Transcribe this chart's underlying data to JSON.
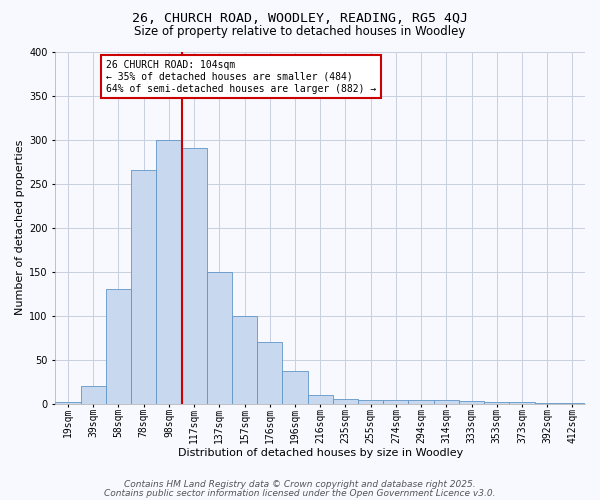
{
  "title1": "26, CHURCH ROAD, WOODLEY, READING, RG5 4QJ",
  "title2": "Size of property relative to detached houses in Woodley",
  "xlabel": "Distribution of detached houses by size in Woodley",
  "ylabel": "Number of detached properties",
  "bar_labels": [
    "19sqm",
    "39sqm",
    "58sqm",
    "78sqm",
    "98sqm",
    "117sqm",
    "137sqm",
    "157sqm",
    "176sqm",
    "196sqm",
    "216sqm",
    "235sqm",
    "255sqm",
    "274sqm",
    "294sqm",
    "314sqm",
    "333sqm",
    "353sqm",
    "373sqm",
    "392sqm",
    "412sqm"
  ],
  "bar_heights": [
    2,
    20,
    130,
    265,
    300,
    290,
    150,
    100,
    70,
    37,
    10,
    6,
    5,
    4,
    5,
    4,
    3,
    2,
    2,
    1,
    1
  ],
  "bar_color": "#c8d8ef",
  "bar_edge_color": "#6096c8",
  "red_line_x": 4.5,
  "red_line_color": "#cc0000",
  "annotation_text": "26 CHURCH ROAD: 104sqm\n← 35% of detached houses are smaller (484)\n64% of semi-detached houses are larger (882) →",
  "annotation_box_color": "#ffffff",
  "annotation_box_edge_color": "#cc0000",
  "ylim": [
    0,
    400
  ],
  "yticks": [
    0,
    50,
    100,
    150,
    200,
    250,
    300,
    350,
    400
  ],
  "footer1": "Contains HM Land Registry data © Crown copyright and database right 2025.",
  "footer2": "Contains public sector information licensed under the Open Government Licence v3.0.",
  "bg_color": "#f8f8ff",
  "grid_color": "#c8d0e0",
  "title1_fontsize": 9.5,
  "title2_fontsize": 8.5,
  "xlabel_fontsize": 8,
  "ylabel_fontsize": 8,
  "annotation_fontsize": 7,
  "tick_fontsize": 7,
  "footer_fontsize": 6.5
}
